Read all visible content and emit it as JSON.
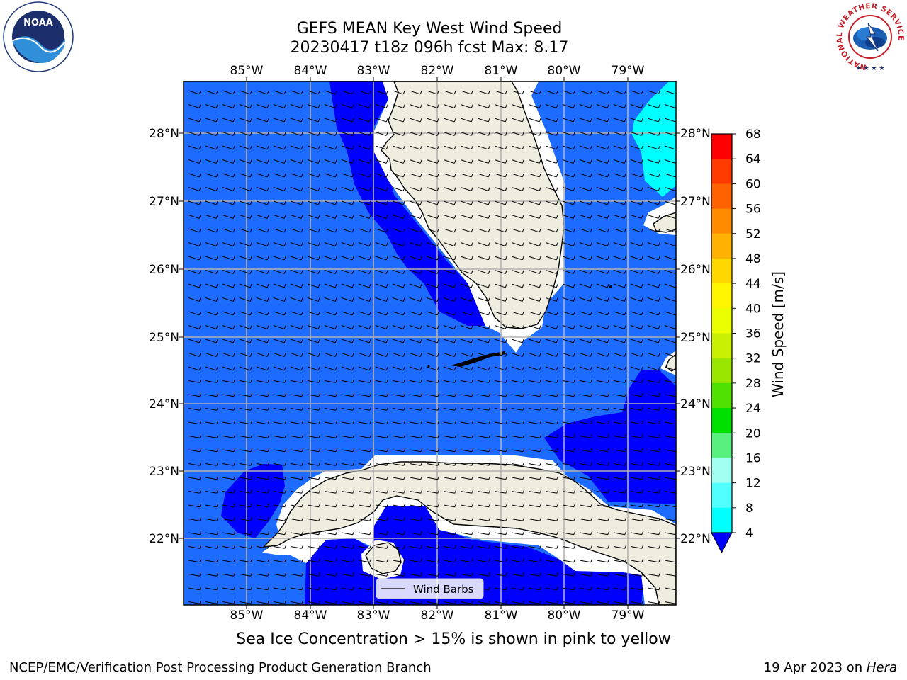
{
  "title": {
    "line1": "GEFS MEAN Key West Wind Speed",
    "line2": "20230417 t18z 096h fcst   Max: 8.17"
  },
  "logos": {
    "left": "NOAA",
    "right_ring": "NATIONAL WEATHER SERVICE"
  },
  "axes": {
    "lon_ticks": [
      "85°W",
      "84°W",
      "83°W",
      "82°W",
      "81°W",
      "80°W",
      "79°W"
    ],
    "lat_ticks": [
      "28°N",
      "27°N",
      "26°N",
      "25°N",
      "24°N",
      "23°N",
      "22°N"
    ]
  },
  "legend": {
    "label": "Wind Barbs"
  },
  "colorbar": {
    "label": "Wind Speed [m/s]",
    "ticks": [
      "68",
      "64",
      "60",
      "56",
      "52",
      "48",
      "44",
      "40",
      "36",
      "32",
      "28",
      "24",
      "20",
      "16",
      "12",
      "8",
      "4"
    ],
    "colors": [
      "#ff0000",
      "#ff3a00",
      "#ff6200",
      "#ff8c00",
      "#ffb000",
      "#ffd800",
      "#fff500",
      "#eaff00",
      "#c8f000",
      "#9ae600",
      "#50e000",
      "#00e000",
      "#5af080",
      "#a0fff0",
      "#50ffff",
      "#00ffff",
      "#00b4ff",
      "#0a5cff"
    ],
    "below_min_color": "#0000ff"
  },
  "map": {
    "field_color_4_8": "#1e6bff",
    "field_color_below_4": "#0000ff",
    "field_color_8_12": "#00ffff",
    "land_color": "#eeeddf"
  },
  "subtitle": "Sea Ice Concentration > 15% is shown in pink to yellow",
  "footer": {
    "left": "NCEP/EMC/Verification Post Processing Product Generation Branch",
    "right_date": "19 Apr 2023 on ",
    "right_host": "Hera"
  }
}
